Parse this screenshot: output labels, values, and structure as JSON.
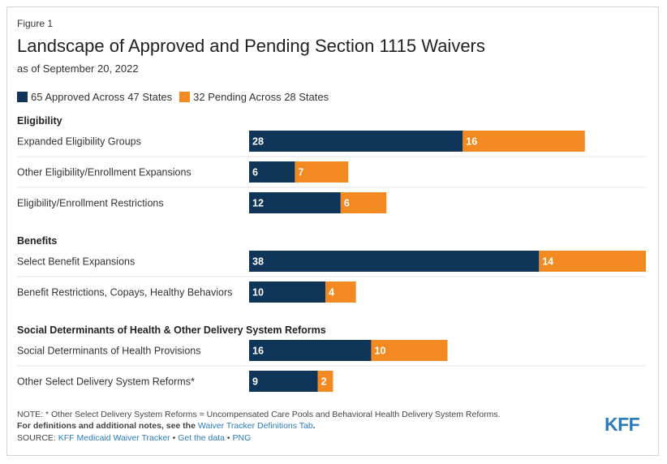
{
  "figure_label": "Figure 1",
  "title": "Landscape of Approved and Pending Section 1115 Waivers",
  "subtitle": "as of September 20, 2022",
  "colors": {
    "approved": "#0f3558",
    "pending": "#f28a21",
    "divider": "#e3e3e3",
    "link": "#2b7bb9"
  },
  "chart_data": {
    "type": "bar",
    "orientation": "horizontal",
    "stacked": true,
    "legend": [
      {
        "name": "65 Approved Across 47 States",
        "series": "approved"
      },
      {
        "name": "32 Pending Across 28 States",
        "series": "pending"
      }
    ],
    "xlim": [
      0,
      52
    ],
    "groups": [
      {
        "heading": "Eligibility",
        "rows": [
          {
            "label": "Expanded Eligibility Groups",
            "approved": 28,
            "pending": 16
          },
          {
            "label": "Other Eligibility/Enrollment Expansions",
            "approved": 6,
            "pending": 7
          },
          {
            "label": "Eligibility/Enrollment Restrictions",
            "approved": 12,
            "pending": 6
          }
        ]
      },
      {
        "heading": "Benefits",
        "rows": [
          {
            "label": "Select Benefit Expansions",
            "approved": 38,
            "pending": 14
          },
          {
            "label": "Benefit Restrictions, Copays, Healthy Behaviors",
            "approved": 10,
            "pending": 4
          }
        ]
      },
      {
        "heading": "Social Determinants of Health & Other Delivery System Reforms",
        "rows": [
          {
            "label": "Social Determinants of Health Provisions",
            "approved": 16,
            "pending": 10
          },
          {
            "label": "Other Select Delivery System Reforms*",
            "approved": 9,
            "pending": 2
          }
        ]
      }
    ]
  },
  "footer": {
    "note": "NOTE: * Other Select Delivery System Reforms = Uncompensated Care Pools and Behavioral Health Delivery System Reforms.",
    "definitions_prefix": "For definitions and additional notes, see the",
    "definitions_link": "Waiver Tracker Definitions Tab",
    "definitions_suffix": ".",
    "source_prefix": "SOURCE:",
    "source_link": "KFF Medicaid Waiver Tracker",
    "separator": "•",
    "get_data": "Get the data",
    "png": "PNG"
  },
  "logo": "KFF"
}
